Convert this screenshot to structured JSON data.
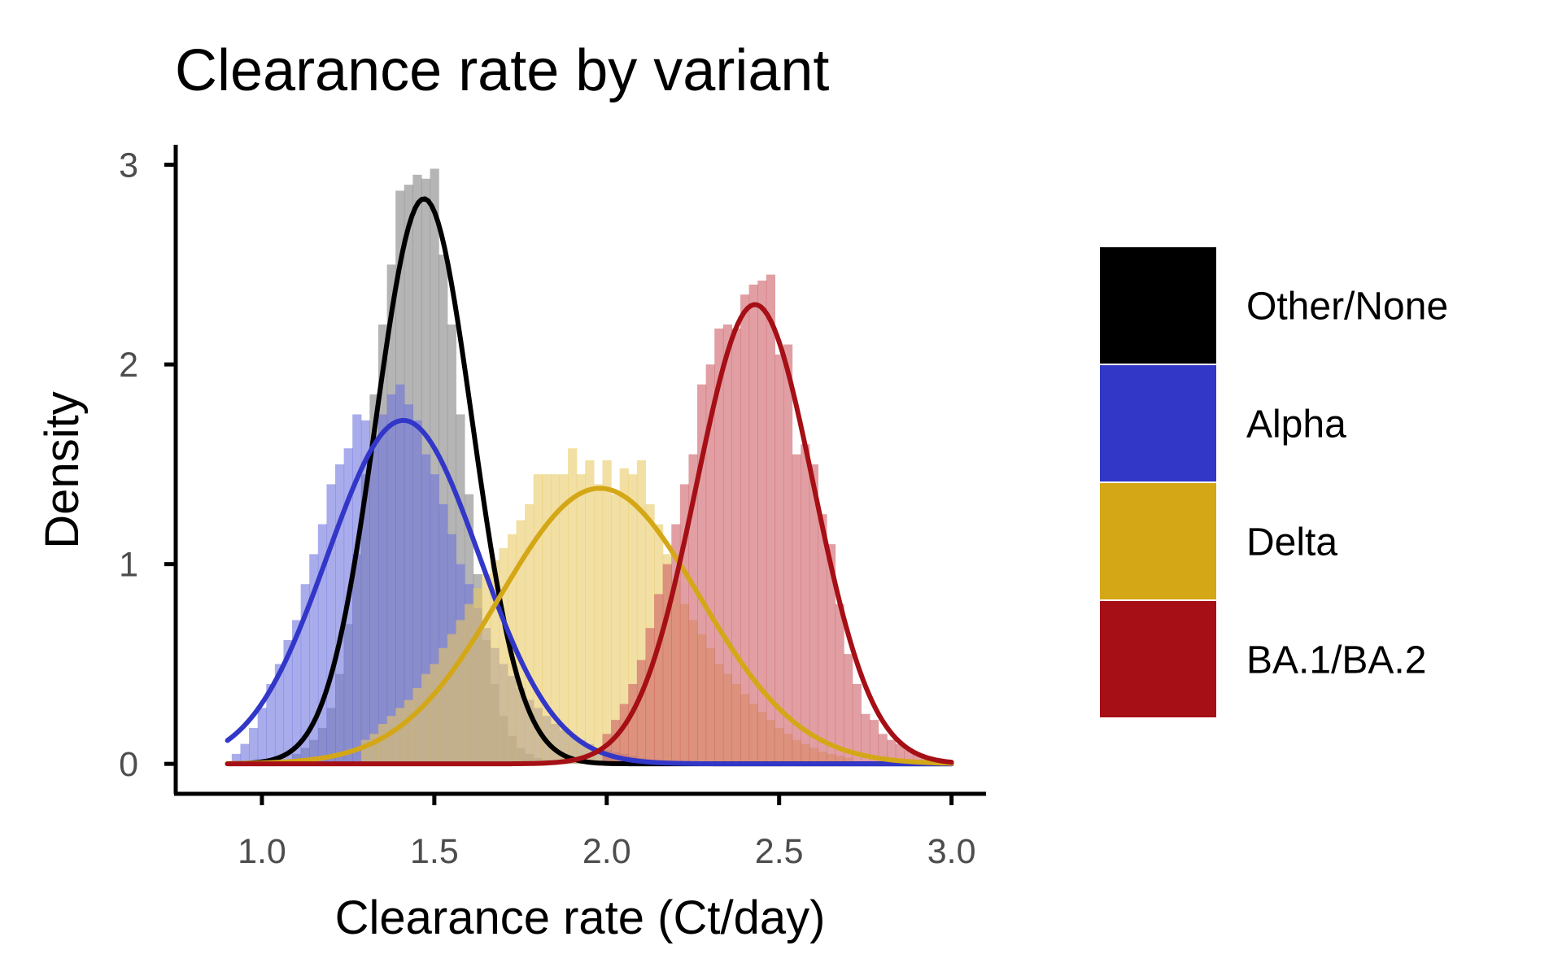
{
  "chart_data": {
    "type": "area",
    "title": "Clearance rate by variant",
    "xlabel": "Clearance rate (Ct/day)",
    "ylabel": "Density",
    "xlim": [
      0.75,
      3.1
    ],
    "ylim": [
      -0.15,
      3.1
    ],
    "xticks": [
      1.0,
      1.5,
      2.0,
      2.5,
      3.0
    ],
    "xtick_labels": [
      "1.0",
      "1.5",
      "2.0",
      "2.5",
      "3.0"
    ],
    "yticks": [
      0,
      1,
      2,
      3
    ],
    "ytick_labels": [
      "0",
      "1",
      "2",
      "3"
    ],
    "grid": false,
    "legend_position": "right",
    "series": [
      {
        "name": "Other/None",
        "color": "#000000",
        "fill_color": "#808080",
        "density_curve": {
          "mean": 1.47,
          "sd": 0.14,
          "peak": 2.83,
          "x_range": [
            0.9,
            3.0
          ]
        },
        "histogram": {
          "bin_width": 0.025,
          "x": [
            1.1,
            1.125,
            1.15,
            1.175,
            1.2,
            1.225,
            1.25,
            1.275,
            1.3,
            1.325,
            1.35,
            1.375,
            1.4,
            1.425,
            1.45,
            1.475,
            1.5,
            1.525,
            1.55,
            1.575,
            1.6,
            1.625,
            1.65,
            1.675,
            1.7,
            1.725,
            1.75,
            1.775,
            1.8,
            1.825
          ],
          "density": [
            0.05,
            0.08,
            0.12,
            0.18,
            0.28,
            0.45,
            0.7,
            1.05,
            1.45,
            1.85,
            2.2,
            2.5,
            2.87,
            2.9,
            2.95,
            2.93,
            2.98,
            2.55,
            2.2,
            1.75,
            1.35,
            0.95,
            0.62,
            0.4,
            0.24,
            0.14,
            0.08,
            0.05,
            0.03,
            0.02
          ]
        }
      },
      {
        "name": "Alpha",
        "color": "#3237c8",
        "fill_color": "#6b70dc",
        "density_curve": {
          "mean": 1.41,
          "sd": 0.22,
          "peak": 1.72,
          "x_range": [
            0.9,
            3.0
          ]
        },
        "histogram": {
          "bin_width": 0.025,
          "x": [
            0.925,
            0.95,
            0.975,
            1.0,
            1.025,
            1.05,
            1.075,
            1.1,
            1.125,
            1.15,
            1.175,
            1.2,
            1.225,
            1.25,
            1.275,
            1.3,
            1.325,
            1.35,
            1.375,
            1.4,
            1.425,
            1.45,
            1.475,
            1.5,
            1.525,
            1.55,
            1.575,
            1.6,
            1.625,
            1.65,
            1.675,
            1.7,
            1.725,
            1.75,
            1.775,
            1.8,
            1.825,
            1.85,
            1.875,
            1.9,
            1.925,
            1.95,
            1.975,
            2.0,
            2.025,
            2.05,
            2.075,
            2.1
          ],
          "density": [
            0.05,
            0.1,
            0.18,
            0.28,
            0.4,
            0.5,
            0.62,
            0.72,
            0.9,
            1.05,
            1.2,
            1.4,
            1.5,
            1.58,
            1.75,
            1.72,
            1.6,
            1.75,
            1.85,
            1.9,
            1.8,
            1.72,
            1.55,
            1.45,
            1.3,
            1.15,
            1.0,
            0.9,
            0.78,
            0.68,
            0.58,
            0.5,
            0.44,
            0.38,
            0.32,
            0.28,
            0.24,
            0.2,
            0.17,
            0.14,
            0.12,
            0.1,
            0.08,
            0.07,
            0.06,
            0.05,
            0.04,
            0.03
          ]
        }
      },
      {
        "name": "Delta",
        "color": "#d4a717",
        "fill_color": "#e8c860",
        "density_curve": {
          "mean": 1.98,
          "sd": 0.29,
          "peak": 1.38,
          "x_range": [
            0.9,
            3.0
          ]
        },
        "histogram": {
          "bin_width": 0.025,
          "x": [
            1.3,
            1.325,
            1.35,
            1.375,
            1.4,
            1.425,
            1.45,
            1.475,
            1.5,
            1.525,
            1.55,
            1.575,
            1.6,
            1.625,
            1.65,
            1.675,
            1.7,
            1.725,
            1.75,
            1.775,
            1.8,
            1.825,
            1.85,
            1.875,
            1.9,
            1.925,
            1.95,
            1.975,
            2.0,
            2.025,
            2.05,
            2.075,
            2.1,
            2.125,
            2.15,
            2.175,
            2.2,
            2.225,
            2.25,
            2.275,
            2.3,
            2.325,
            2.35,
            2.375,
            2.4,
            2.425,
            2.45,
            2.475,
            2.5,
            2.525,
            2.55,
            2.575,
            2.6,
            2.625,
            2.65,
            2.675,
            2.7
          ],
          "density": [
            0.12,
            0.15,
            0.2,
            0.24,
            0.28,
            0.32,
            0.38,
            0.45,
            0.5,
            0.58,
            0.65,
            0.72,
            0.8,
            0.88,
            0.95,
            1.02,
            1.08,
            1.15,
            1.22,
            1.3,
            1.45,
            1.45,
            1.45,
            1.45,
            1.58,
            1.45,
            1.52,
            1.4,
            1.52,
            1.35,
            1.48,
            1.45,
            1.52,
            1.3,
            1.2,
            1.05,
            0.92,
            0.8,
            0.72,
            0.65,
            0.58,
            0.5,
            0.45,
            0.4,
            0.35,
            0.3,
            0.26,
            0.22,
            0.18,
            0.15,
            0.12,
            0.1,
            0.08,
            0.06,
            0.05,
            0.04,
            0.03
          ]
        }
      },
      {
        "name": "BA.1/BA.2",
        "color": "#a50f15",
        "fill_color": "#cc5a62",
        "density_curve": {
          "mean": 2.43,
          "sd": 0.17,
          "peak": 2.3,
          "x_range": [
            0.9,
            3.0
          ]
        },
        "histogram": {
          "bin_width": 0.025,
          "x": [
            2.0,
            2.025,
            2.05,
            2.075,
            2.1,
            2.125,
            2.15,
            2.175,
            2.2,
            2.225,
            2.25,
            2.275,
            2.3,
            2.325,
            2.35,
            2.375,
            2.4,
            2.425,
            2.45,
            2.475,
            2.5,
            2.525,
            2.55,
            2.575,
            2.6,
            2.625,
            2.65,
            2.675,
            2.7,
            2.725,
            2.75,
            2.775,
            2.8,
            2.825,
            2.85,
            2.875,
            2.9,
            2.925,
            2.95
          ],
          "density": [
            0.15,
            0.22,
            0.3,
            0.4,
            0.52,
            0.68,
            0.85,
            1.0,
            1.2,
            1.4,
            1.55,
            1.9,
            2.0,
            2.18,
            2.2,
            2.18,
            2.35,
            2.4,
            2.42,
            2.45,
            2.05,
            2.1,
            1.55,
            1.6,
            1.5,
            1.25,
            1.1,
            0.8,
            0.55,
            0.4,
            0.25,
            0.22,
            0.15,
            0.12,
            0.1,
            0.07,
            0.05,
            0.03,
            0.02
          ]
        }
      }
    ]
  }
}
